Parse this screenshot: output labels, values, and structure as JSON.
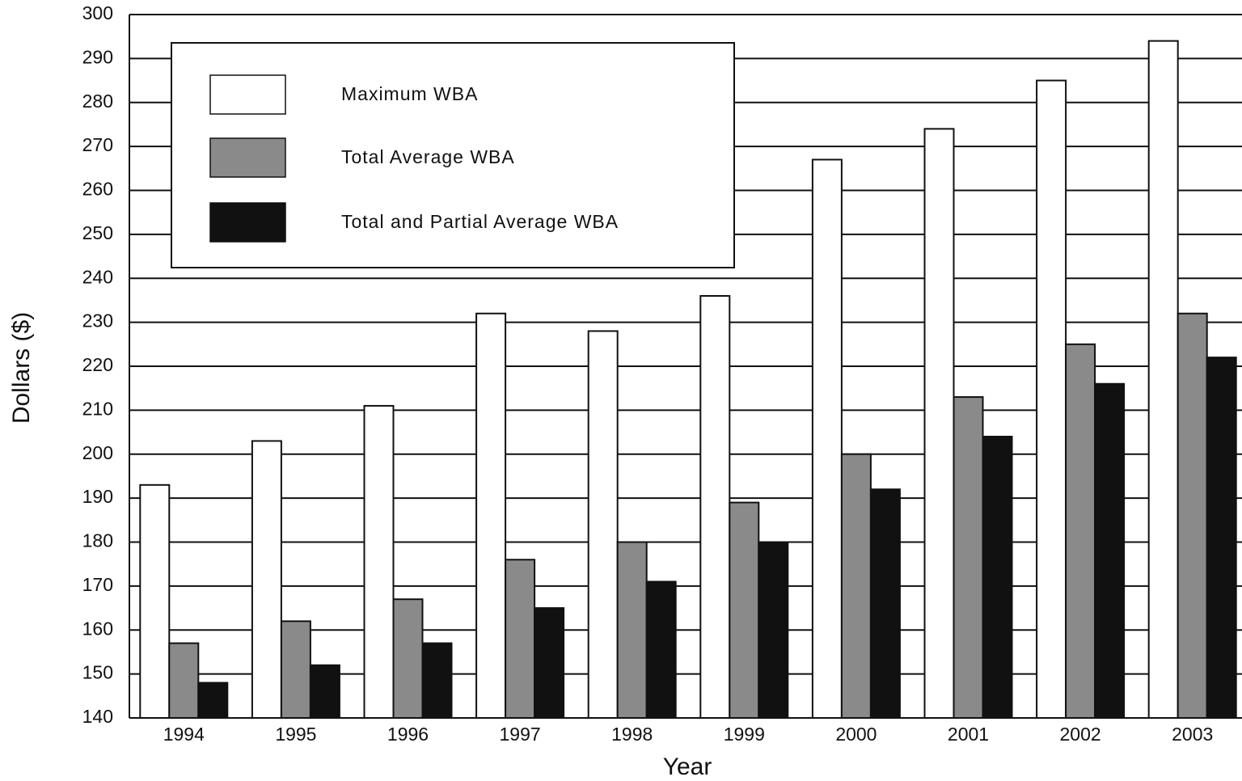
{
  "chart_data": {
    "type": "bar",
    "x_label": "Year",
    "y_label": "Dollars ($)",
    "categories": [
      "1994",
      "1995",
      "1996",
      "1997",
      "1998",
      "1999",
      "2000",
      "2001",
      "2002",
      "2003"
    ],
    "series": [
      {
        "name": "Maximum WBA",
        "color": "#ffffff",
        "values": [
          193,
          203,
          211,
          232,
          228,
          236,
          267,
          274,
          285,
          294
        ]
      },
      {
        "name": "Total Average WBA",
        "color": "#8a8a8a",
        "values": [
          157,
          162,
          167,
          176,
          180,
          189,
          200,
          213,
          225,
          232
        ]
      },
      {
        "name": "Total and Partial Average WBA",
        "color": "#111111",
        "values": [
          148,
          152,
          157,
          165,
          171,
          180,
          192,
          204,
          216,
          222
        ]
      }
    ],
    "ylim": [
      140,
      300
    ],
    "yticks": [
      140,
      150,
      160,
      170,
      180,
      190,
      200,
      210,
      220,
      230,
      240,
      250,
      260,
      270,
      280,
      290,
      300
    ],
    "grid": true,
    "legend": "upper left"
  }
}
